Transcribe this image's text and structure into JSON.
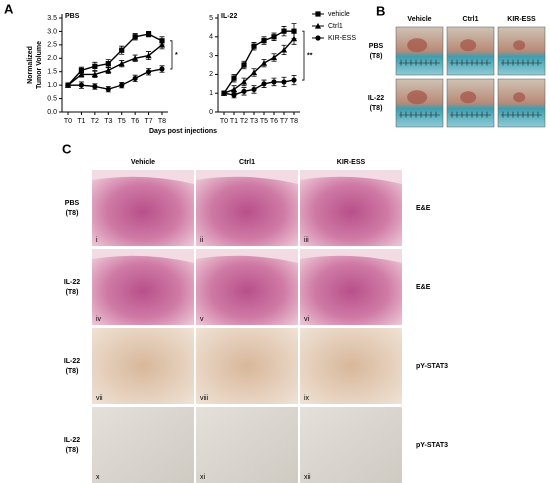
{
  "panel_labels": [
    "A",
    "B",
    "C"
  ],
  "chart_data": [
    {
      "type": "line",
      "title": "PBS",
      "y_label": [
        "Normalized",
        "Tumor Volume"
      ],
      "x_label": "Days post injections",
      "categories": [
        "T0",
        "T1",
        "T2",
        "T3",
        "T5",
        "T6",
        "T7",
        "T8"
      ],
      "ylim": [
        0,
        3.5
      ],
      "yticks": [
        {
          "value": 0,
          "label": "0.0"
        },
        0.5,
        {
          "value": 1,
          "label": "1.0"
        },
        1.5,
        {
          "value": 2,
          "label": "2.0"
        },
        2.5,
        {
          "value": 3,
          "label": "3.0"
        },
        3.5
      ],
      "series": [
        {
          "name": "vehicle",
          "color": "#000000",
          "marker": "square",
          "values": [
            1.0,
            1.55,
            1.7,
            1.8,
            2.3,
            2.8,
            2.9,
            2.65
          ],
          "errors": [
            0.03,
            0.12,
            0.15,
            0.15,
            0.15,
            0.12,
            0.1,
            0.15
          ]
        },
        {
          "name": "Ctrl1",
          "color": "#000000",
          "marker": "triangle",
          "values": [
            1.0,
            1.4,
            1.4,
            1.55,
            1.8,
            2.0,
            2.1,
            2.5
          ],
          "errors": [
            0.03,
            0.1,
            0.12,
            0.12,
            0.12,
            0.12,
            0.15,
            0.15
          ]
        },
        {
          "name": "KIR-ESS",
          "color": "#000000",
          "marker": "circle",
          "values": [
            1.0,
            1.0,
            0.95,
            0.85,
            1.0,
            1.25,
            1.5,
            1.6
          ],
          "errors": [
            0.03,
            0.12,
            0.1,
            0.1,
            0.1,
            0.12,
            0.12,
            0.12
          ]
        }
      ],
      "annotations": [
        "*"
      ]
    },
    {
      "type": "line",
      "title": "IL-22",
      "categories": [
        "T0",
        "T1",
        "T2",
        "T3",
        "T5",
        "T6",
        "T7",
        "T8"
      ],
      "ylim": [
        0,
        5
      ],
      "yticks": [
        0,
        1,
        2,
        3,
        4,
        5
      ],
      "series": [
        {
          "name": "vehicle",
          "color": "#000000",
          "marker": "square",
          "values": [
            1.0,
            1.8,
            2.5,
            3.5,
            3.8,
            4.0,
            4.3,
            4.3
          ],
          "errors": [
            0.05,
            0.2,
            0.2,
            0.2,
            0.2,
            0.2,
            0.25,
            0.4
          ]
        },
        {
          "name": "Ctrl1",
          "color": "#000000",
          "marker": "triangle",
          "values": [
            1.0,
            1.2,
            1.6,
            2.1,
            2.6,
            2.9,
            3.3,
            3.9
          ],
          "errors": [
            0.05,
            0.2,
            0.2,
            0.2,
            0.2,
            0.2,
            0.25,
            0.3
          ]
        },
        {
          "name": "KIR-ESS",
          "color": "#000000",
          "marker": "circle",
          "values": [
            1.0,
            0.9,
            1.1,
            1.2,
            1.5,
            1.6,
            1.6,
            1.7
          ],
          "errors": [
            0.05,
            0.15,
            0.2,
            0.2,
            0.2,
            0.2,
            0.25,
            0.25
          ]
        }
      ],
      "annotations": [
        "**"
      ]
    }
  ],
  "panel_b": {
    "columns": [
      "Vehicle",
      "Ctrl1",
      "KIR-ESS"
    ],
    "rows": [
      {
        "label": "PBS",
        "sub": "(T8)"
      },
      {
        "label": "IL-22",
        "sub": "(T8)"
      }
    ]
  },
  "panel_c": {
    "columns": [
      "Vehicle",
      "Ctrl1",
      "KIR-ESS"
    ],
    "rows": [
      {
        "label": "PBS",
        "sub": "(T8)",
        "stain": "E&E",
        "numerals": [
          "i",
          "ii",
          "iii"
        ]
      },
      {
        "label": "IL-22",
        "sub": "(T8)",
        "stain": "E&E",
        "numerals": [
          "iv",
          "v",
          "vi"
        ]
      },
      {
        "label": "IL-22",
        "sub": "(T8)",
        "stain": "pY-STAT3",
        "numerals": [
          "vii",
          "viii",
          "ix"
        ]
      },
      {
        "label": "IL-22",
        "sub": "(T8)",
        "stain": "pY-STAT3",
        "numerals": [
          "x",
          "xi",
          "xii"
        ]
      }
    ]
  }
}
